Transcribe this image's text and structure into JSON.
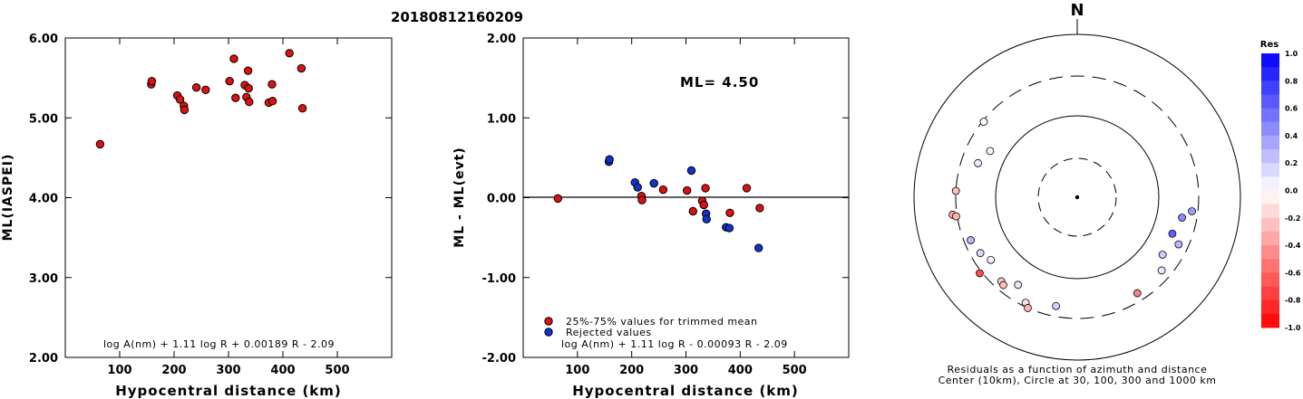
{
  "event_id": "20180812160209",
  "chart_data": [
    {
      "type": "scatter",
      "title": "",
      "xlabel": "Hypocentral distance (km)",
      "ylabel": "ML(IASPEI)",
      "xlim": [
        0,
        600
      ],
      "ylim": [
        2.0,
        6.0
      ],
      "x_ticks": [
        "100",
        "200",
        "300",
        "400",
        "500"
      ],
      "y_ticks": [
        "2.00",
        "3.00",
        "4.00",
        "5.00",
        "6.00"
      ],
      "formula": "log A(nm) + 1.11 log R + 0.00189 R - 2.09",
      "points_color": "#dd1111",
      "points": [
        [
          64,
          4.67
        ],
        [
          158,
          5.42
        ],
        [
          159,
          5.46
        ],
        [
          206,
          5.28
        ],
        [
          211,
          5.23
        ],
        [
          218,
          5.15
        ],
        [
          219,
          5.1
        ],
        [
          241,
          5.38
        ],
        [
          258,
          5.35
        ],
        [
          302,
          5.46
        ],
        [
          310,
          5.74
        ],
        [
          313,
          5.25
        ],
        [
          330,
          5.41
        ],
        [
          333,
          5.26
        ],
        [
          336,
          5.59
        ],
        [
          337,
          5.37
        ],
        [
          338,
          5.2
        ],
        [
          374,
          5.19
        ],
        [
          380,
          5.42
        ],
        [
          381,
          5.21
        ],
        [
          412,
          5.81
        ],
        [
          434,
          5.62
        ],
        [
          436,
          5.12
        ]
      ]
    },
    {
      "type": "scatter",
      "title": "",
      "xlabel": "Hypocentral distance (km)",
      "ylabel": "ML - ML(evt)",
      "xlim": [
        0,
        600
      ],
      "ylim": [
        -2.0,
        2.0
      ],
      "x_ticks": [
        "100",
        "200",
        "300",
        "400",
        "500"
      ],
      "y_ticks": [
        "-2.00",
        "-1.00",
        "0.00",
        "1.00",
        "2.00"
      ],
      "annotation": "ML= 4.50",
      "formula": "log A(nm) + 1.11 log R - 0.00093 R - 2.09",
      "legend": [
        {
          "label": "25%-75% values for trimmed mean",
          "color": "#dd1111"
        },
        {
          "label": "Rejected values",
          "color": "#1133cc"
        }
      ],
      "series": [
        {
          "name": "25%-75% values for trimmed mean",
          "color": "#dd1111",
          "points": [
            [
              64,
              -0.01
            ],
            [
              218,
              0.02
            ],
            [
              219,
              -0.03
            ],
            [
              258,
              0.1
            ],
            [
              302,
              0.09
            ],
            [
              313,
              -0.17
            ],
            [
              330,
              -0.04
            ],
            [
              333,
              -0.09
            ],
            [
              336,
              0.12
            ],
            [
              381,
              -0.19
            ],
            [
              412,
              0.12
            ],
            [
              436,
              -0.13
            ]
          ]
        },
        {
          "name": "Rejected values",
          "color": "#1133cc",
          "points": [
            [
              158,
              0.45
            ],
            [
              159,
              0.48
            ],
            [
              206,
              0.19
            ],
            [
              211,
              0.13
            ],
            [
              241,
              0.18
            ],
            [
              310,
              0.34
            ],
            [
              337,
              -0.2
            ],
            [
              338,
              -0.27
            ],
            [
              374,
              -0.37
            ],
            [
              380,
              -0.38
            ],
            [
              434,
              -0.63
            ]
          ]
        }
      ]
    },
    {
      "type": "polar-scatter",
      "north_label": "N",
      "caption_line1": "Residuals as a function of azimuth and distance",
      "caption_line2": "Center (10km), Circle at 30, 100, 300 and 1000 km",
      "colorbar_title": "Res",
      "colorbar_ticks": [
        "1.0",
        "0.8",
        "0.6",
        "0.4",
        "0.2",
        "0.0",
        "-0.2",
        "-0.4",
        "-0.6",
        "-0.8",
        "-1.0"
      ],
      "rings_km": [
        30,
        100,
        300,
        1000
      ],
      "stations": [
        {
          "az": 298,
          "dist": 160,
          "res": 0.04
        },
        {
          "az": 289,
          "dist": 190,
          "res": 0.08
        },
        {
          "az": 273,
          "dist": 300,
          "res": -0.25
        },
        {
          "az": 262,
          "dist": 340,
          "res": -0.35
        },
        {
          "az": 261,
          "dist": 310,
          "res": -0.3
        },
        {
          "az": 248,
          "dist": 250,
          "res": 0.28
        },
        {
          "az": 240,
          "dist": 230,
          "res": 0.16
        },
        {
          "az": 232,
          "dist": 320,
          "res": -0.7
        },
        {
          "az": 234,
          "dist": 200,
          "res": 0.06
        },
        {
          "az": 222,
          "dist": 240,
          "res": -0.22
        },
        {
          "az": 220,
          "dist": 250,
          "res": -0.25
        },
        {
          "az": 214,
          "dist": 195,
          "res": 0.1
        },
        {
          "az": 206,
          "dist": 270,
          "res": -0.12
        },
        {
          "az": 204,
          "dist": 300,
          "res": -0.3
        },
        {
          "az": 191,
          "dist": 225,
          "res": 0.18
        },
        {
          "az": 148,
          "dist": 240,
          "res": -0.5
        },
        {
          "az": 131,
          "dist": 230,
          "res": 0.1
        },
        {
          "az": 124,
          "dist": 180,
          "res": 0.2
        },
        {
          "az": 97,
          "dist": 255,
          "res": 0.38
        },
        {
          "az": 101,
          "dist": 200,
          "res": 0.45
        },
        {
          "az": 111,
          "dist": 175,
          "res": 0.62
        },
        {
          "az": 115,
          "dist": 230,
          "res": 0.28
        },
        {
          "az": 309,
          "dist": 290,
          "res": 0.02
        }
      ]
    }
  ]
}
